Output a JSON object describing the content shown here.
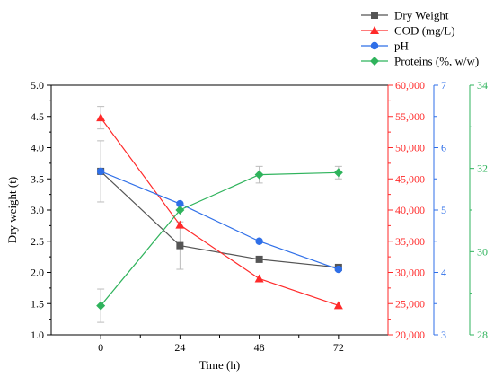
{
  "chart_data": {
    "type": "line",
    "x": [
      0,
      24,
      48,
      72
    ],
    "xlabel": "Time (h)",
    "xlim": [
      -15,
      87
    ],
    "x_ticks": [
      "0",
      "24",
      "48",
      "72"
    ],
    "grid": false,
    "legend_position": "top-right",
    "axes": [
      {
        "id": "dry",
        "side": "left",
        "label": "Dry weight (t)",
        "color": "#000000",
        "ylim": [
          1.0,
          5.0
        ],
        "ticks": [
          "1.0",
          "1.5",
          "2.0",
          "2.5",
          "3.0",
          "3.5",
          "4.0",
          "4.5",
          "5.0"
        ]
      },
      {
        "id": "cod",
        "side": "right",
        "label": "",
        "color": "#ff2a2a",
        "ylim": [
          20000,
          60000
        ],
        "ticks": [
          "20,000",
          "25,000",
          "30,000",
          "35,000",
          "40,000",
          "45,000",
          "50,000",
          "55,000",
          "60,000"
        ]
      },
      {
        "id": "ph",
        "side": "right",
        "label": "",
        "color": "#2f6fe8",
        "ylim": [
          3,
          7
        ],
        "ticks": [
          "3",
          "4",
          "5",
          "6",
          "7"
        ]
      },
      {
        "id": "prot",
        "side": "right",
        "label": "",
        "color": "#2fb35c",
        "ylim": [
          28,
          34
        ],
        "ticks": [
          "28",
          "30",
          "32",
          "34"
        ]
      }
    ],
    "series": [
      {
        "name": "Dry Weight",
        "axis": "dry",
        "marker": "square",
        "line_color": "#555555",
        "marker_color": "#555555",
        "values": [
          3.62,
          2.43,
          2.21,
          2.08
        ],
        "errors": [
          0.49,
          0.38,
          0.0,
          0.0
        ]
      },
      {
        "name": "COD (mg/L)",
        "axis": "cod",
        "marker": "triangle",
        "line_color": "#ff2a2a",
        "marker_color": "#ff2a2a",
        "values": [
          54800,
          37600,
          29000,
          24700
        ],
        "errors": [
          1800,
          0,
          0,
          0
        ]
      },
      {
        "name": "pH",
        "axis": "ph",
        "marker": "circle",
        "line_color": "#2f6fe8",
        "marker_color": "#2f6fe8",
        "values": [
          5.62,
          5.1,
          4.5,
          4.05
        ],
        "errors": [
          0,
          0,
          0,
          0
        ]
      },
      {
        "name": "Proteins (%, w/w)",
        "axis": "prot",
        "marker": "diamond",
        "line_color": "#2fb35c",
        "marker_color": "#2fb35c",
        "values": [
          28.7,
          31.0,
          31.85,
          31.9
        ],
        "errors": [
          0.4,
          0.0,
          0.2,
          0.15
        ]
      }
    ]
  }
}
